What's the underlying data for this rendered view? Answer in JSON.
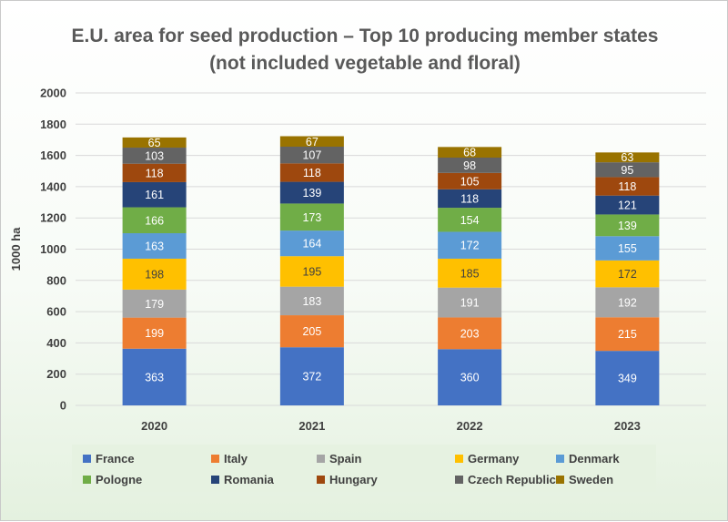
{
  "title_lines": [
    "E.U. area for seed production – Top 10 producing member states",
    "(not included vegetable and floral)"
  ],
  "chart_data": {
    "type": "bar",
    "stacked": true,
    "title": "E.U. area for seed production – Top 10 producing member states (not included vegetable and floral)",
    "categories": [
      "2020",
      "2021",
      "2022",
      "2023"
    ],
    "ylabel": "1000 ha",
    "ylim": [
      0,
      2000
    ],
    "yticks": [
      "0",
      "200",
      "400",
      "600",
      "800",
      "1000",
      "1200",
      "1400",
      "1600",
      "1800",
      "2000"
    ],
    "grid": true,
    "legend_position": "bottom",
    "series": [
      {
        "name": "France",
        "color": "#4472c4",
        "label_color": "#ffffff",
        "values": [
          363,
          372,
          360,
          349
        ]
      },
      {
        "name": "Italy",
        "color": "#ed7d31",
        "label_color": "#ffffff",
        "values": [
          199,
          205,
          203,
          215
        ]
      },
      {
        "name": "Spain",
        "color": "#a5a5a5",
        "label_color": "#ffffff",
        "values": [
          179,
          183,
          191,
          192
        ]
      },
      {
        "name": "Germany",
        "color": "#ffc000",
        "label_color": "#404040",
        "values": [
          198,
          195,
          185,
          172
        ]
      },
      {
        "name": "Denmark",
        "color": "#5b9bd5",
        "label_color": "#ffffff",
        "values": [
          163,
          164,
          172,
          155
        ]
      },
      {
        "name": "Pologne",
        "color": "#70ad47",
        "label_color": "#ffffff",
        "values": [
          166,
          173,
          154,
          139
        ]
      },
      {
        "name": "Romania",
        "color": "#264478",
        "label_color": "#ffffff",
        "values": [
          161,
          139,
          118,
          121
        ]
      },
      {
        "name": "Hungary",
        "color": "#9e480e",
        "label_color": "#ffffff",
        "values": [
          118,
          118,
          105,
          118
        ]
      },
      {
        "name": "Czech Republic",
        "color": "#636363",
        "label_color": "#ffffff",
        "values": [
          103,
          107,
          98,
          95
        ]
      },
      {
        "name": "Sweden",
        "color": "#997300",
        "label_color": "#ffffff",
        "values": [
          65,
          67,
          68,
          63
        ]
      }
    ]
  }
}
